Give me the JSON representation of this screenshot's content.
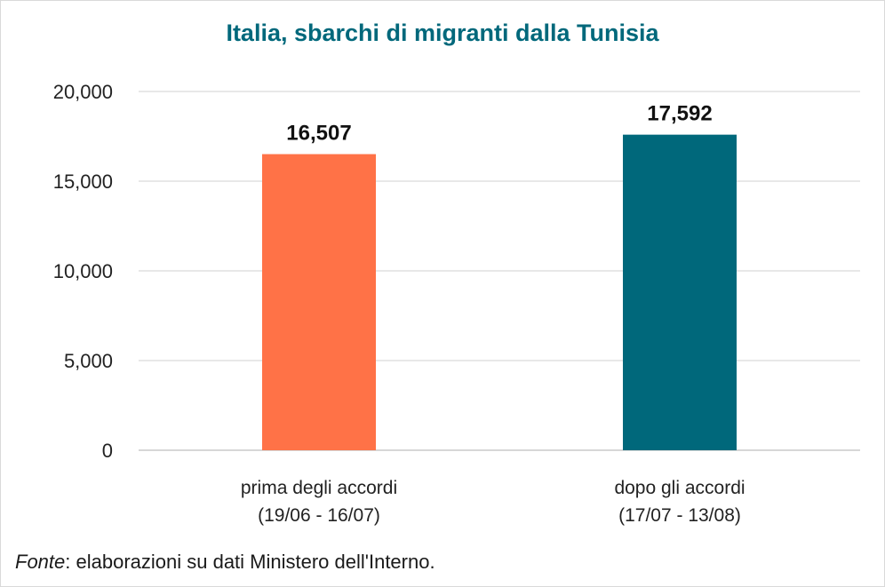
{
  "chart_data": {
    "type": "bar",
    "title": "Italia, sbarchi di migranti dalla Tunisia",
    "xlabel": "",
    "ylabel": "",
    "ylim": [
      0,
      20000
    ],
    "yticks": [
      "0",
      "5,000",
      "10,000",
      "15,000",
      "20,000"
    ],
    "grid": true,
    "categories": [
      [
        "prima degli accordi",
        "(19/06 - 16/07)"
      ],
      [
        "dopo gli accordi",
        "(17/07 - 13/08)"
      ]
    ],
    "values": [
      16507,
      17592
    ],
    "value_labels": [
      "16,507",
      "17,592"
    ],
    "colors": [
      "#ff7247",
      "#00687b"
    ]
  },
  "source": {
    "prefix": "Fonte",
    "text": ": elaborazioni su dati  Ministero dell'Interno."
  }
}
